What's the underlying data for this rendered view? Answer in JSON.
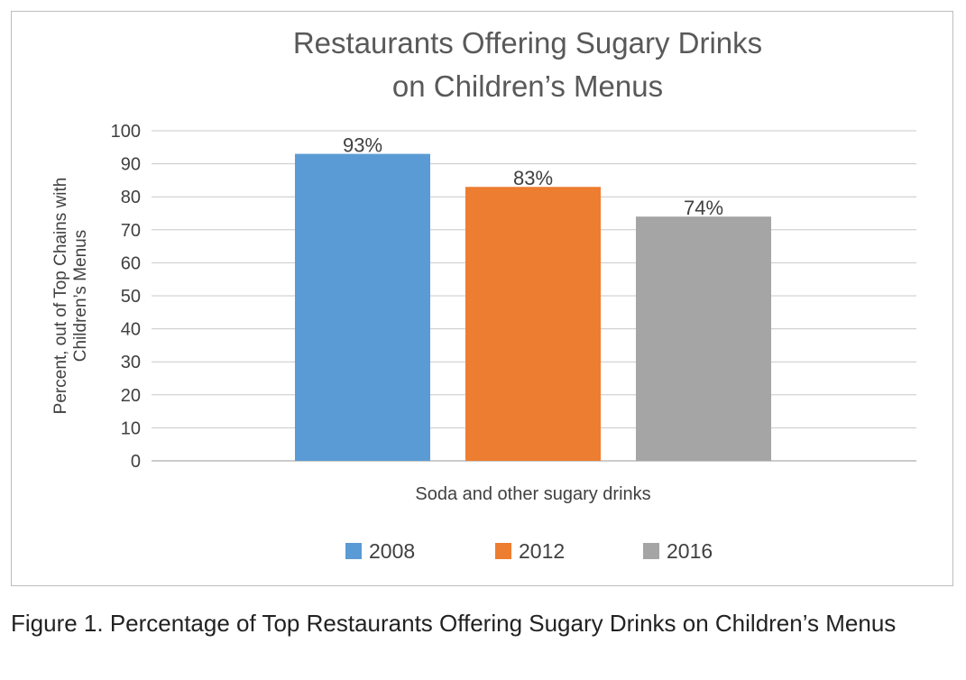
{
  "chart_data": {
    "type": "bar",
    "title_lines": [
      "Restaurants Offering Sugary Drinks",
      "on Children’s Menus"
    ],
    "ylabel_lines": [
      "Percent, out of Top Chains with",
      "Children’s Menus"
    ],
    "xlabel": "Soda and other sugary drinks",
    "categories": [
      "Soda and other sugary drinks"
    ],
    "series": [
      {
        "name": "2008",
        "values": [
          93
        ],
        "label": "93%",
        "color": "#5b9bd5"
      },
      {
        "name": "2012",
        "values": [
          83
        ],
        "label": "83%",
        "color": "#ed7d31"
      },
      {
        "name": "2016",
        "values": [
          74
        ],
        "label": "74%",
        "color": "#a5a5a5"
      }
    ],
    "ylim": [
      0,
      100
    ],
    "yticks": [
      0,
      10,
      20,
      30,
      40,
      50,
      60,
      70,
      80,
      90,
      100
    ],
    "grid": true,
    "legend_position": "bottom"
  },
  "caption": "Figure 1. Percentage of Top Restaurants Offering Sugary Drinks on Children’s Menus"
}
